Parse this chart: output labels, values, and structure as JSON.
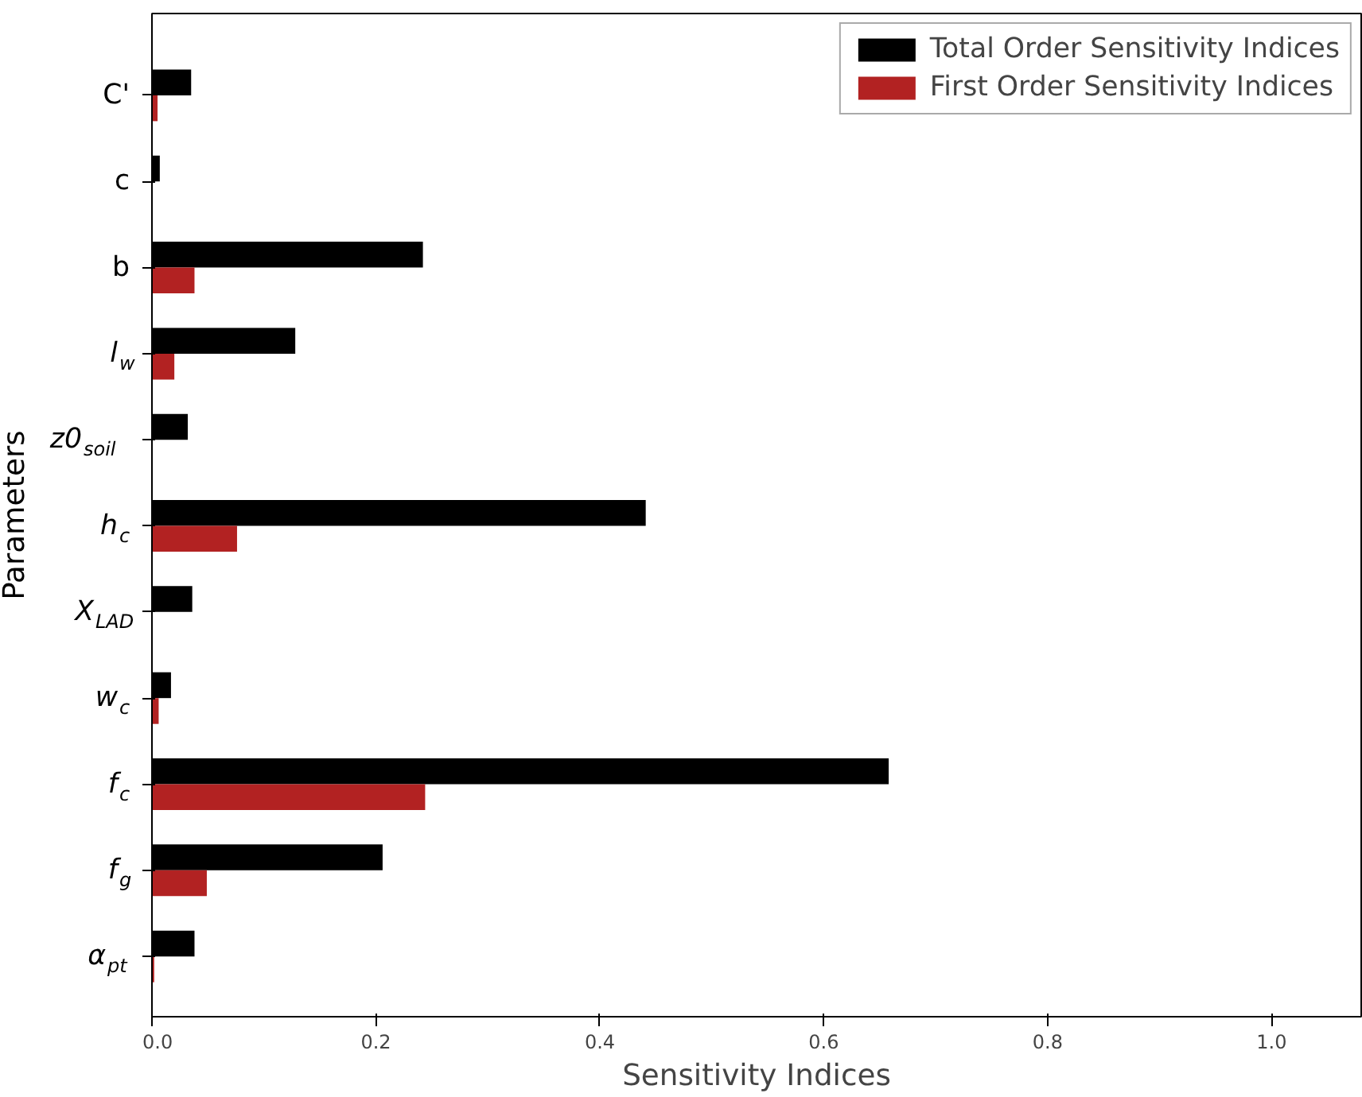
{
  "chart_data": {
    "type": "bar",
    "orientation": "horizontal",
    "xlabel": "Sensitivity Indices",
    "ylabel": "Parameters",
    "categories": [
      "C'",
      "c",
      "b",
      "l$_{w}$",
      "z0$_{soil}$",
      "h$_{c}$",
      "X$_{LAD}$",
      "w$_{c}$",
      "f$_{c}$",
      "f$_{g}$",
      "α$_{pt}$"
    ],
    "series": [
      {
        "name": "Total Order Sensitivity Indices",
        "color": "#000000",
        "values": [
          0.035,
          0.007,
          0.242,
          0.128,
          0.032,
          0.441,
          0.036,
          0.017,
          0.658,
          0.206,
          0.038
        ]
      },
      {
        "name": "First Order Sensitivity Indices",
        "color": "#b22222",
        "values": [
          0.005,
          null,
          0.038,
          0.02,
          null,
          0.076,
          null,
          0.006,
          0.244,
          0.049,
          0.002
        ]
      }
    ],
    "xlim": [
      0,
      1.08
    ],
    "xticks": [
      {
        "value": 0,
        "label": "0.0"
      },
      0.2,
      0.4,
      0.6,
      0.8,
      {
        "value": 1,
        "label": "1.0"
      }
    ],
    "legend": "top right",
    "grid": false
  }
}
